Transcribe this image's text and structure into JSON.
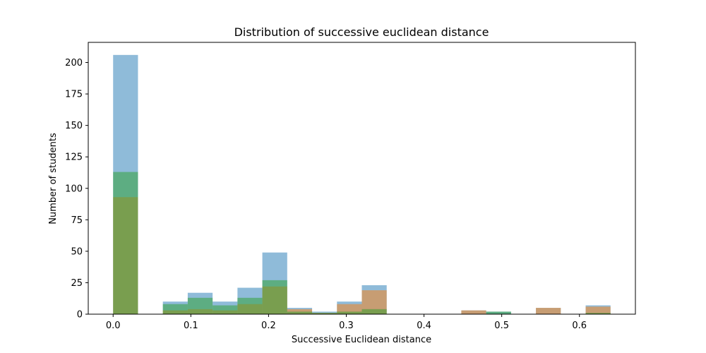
{
  "chart_data": {
    "type": "bar",
    "title": "Distribution of successive euclidean distance",
    "xlabel": "Successive Euclidean distance",
    "ylabel": "Number of students",
    "xlim": [
      -0.032,
      0.672
    ],
    "ylim": [
      0,
      216
    ],
    "x_ticks": [
      "0.0",
      "0.1",
      "0.2",
      "0.3",
      "0.4",
      "0.5",
      "0.6"
    ],
    "x_tick_values": [
      0.0,
      0.1,
      0.2,
      0.3,
      0.4,
      0.5,
      0.6
    ],
    "y_ticks": [
      "0",
      "25",
      "50",
      "75",
      "100",
      "125",
      "150",
      "175",
      "200"
    ],
    "y_tick_values": [
      0,
      25,
      50,
      75,
      100,
      125,
      150,
      175,
      200
    ],
    "grid": false,
    "legend": "none",
    "bin_width": 0.032,
    "series": [
      {
        "color": "#1f77b4",
        "opacity": 0.5,
        "bins": [
          {
            "x": 0.0,
            "value": 206
          },
          {
            "x": 0.064,
            "value": 10
          },
          {
            "x": 0.096,
            "value": 17
          },
          {
            "x": 0.128,
            "value": 10
          },
          {
            "x": 0.16,
            "value": 21
          },
          {
            "x": 0.192,
            "value": 49
          },
          {
            "x": 0.224,
            "value": 5
          },
          {
            "x": 0.256,
            "value": 2
          },
          {
            "x": 0.288,
            "value": 10
          },
          {
            "x": 0.32,
            "value": 23
          },
          {
            "x": 0.448,
            "value": 3
          },
          {
            "x": 0.48,
            "value": 2
          },
          {
            "x": 0.544,
            "value": 5
          },
          {
            "x": 0.608,
            "value": 7
          }
        ]
      },
      {
        "color": "#ff7f0e",
        "opacity": 0.5,
        "bins": [
          {
            "x": 0.0,
            "value": 93
          },
          {
            "x": 0.064,
            "value": 3
          },
          {
            "x": 0.096,
            "value": 4
          },
          {
            "x": 0.128,
            "value": 3
          },
          {
            "x": 0.16,
            "value": 8
          },
          {
            "x": 0.192,
            "value": 22
          },
          {
            "x": 0.224,
            "value": 4
          },
          {
            "x": 0.256,
            "value": 1
          },
          {
            "x": 0.288,
            "value": 8
          },
          {
            "x": 0.32,
            "value": 19
          },
          {
            "x": 0.448,
            "value": 3
          },
          {
            "x": 0.544,
            "value": 5
          },
          {
            "x": 0.608,
            "value": 6
          }
        ]
      },
      {
        "color": "#2ca02c",
        "opacity": 0.5,
        "bins": [
          {
            "x": 0.0,
            "value": 113
          },
          {
            "x": 0.064,
            "value": 8
          },
          {
            "x": 0.096,
            "value": 13
          },
          {
            "x": 0.128,
            "value": 7
          },
          {
            "x": 0.16,
            "value": 13
          },
          {
            "x": 0.192,
            "value": 27
          },
          {
            "x": 0.224,
            "value": 2
          },
          {
            "x": 0.256,
            "value": 1
          },
          {
            "x": 0.288,
            "value": 2
          },
          {
            "x": 0.32,
            "value": 4
          },
          {
            "x": 0.48,
            "value": 2
          },
          {
            "x": 0.608,
            "value": 1
          }
        ]
      }
    ]
  }
}
